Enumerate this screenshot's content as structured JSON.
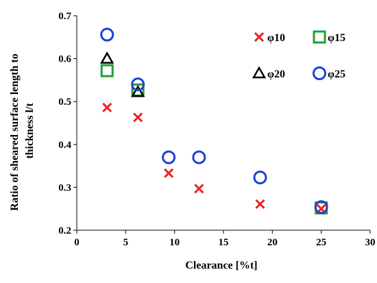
{
  "chart_data": {
    "type": "scatter",
    "title": "",
    "xlabel": "Clearance [%t]",
    "ylabel_lines": [
      "Ratio of sheared surface length to",
      "thickness l/t"
    ],
    "xlim": [
      0,
      30
    ],
    "ylim": [
      0.2,
      0.7
    ],
    "x_ticks": [
      0,
      5,
      10,
      15,
      20,
      25,
      30
    ],
    "y_ticks": [
      "0.2",
      "0.3",
      "0.4",
      "0.5",
      "0.6",
      "0.7"
    ],
    "grid": false,
    "legend_position": "top-right",
    "series": [
      {
        "name": "φ10",
        "marker": "x",
        "color": "#e8251f",
        "points": [
          [
            3.1,
            0.486
          ],
          [
            6.25,
            0.463
          ],
          [
            9.4,
            0.333
          ],
          [
            12.5,
            0.297
          ],
          [
            18.75,
            0.261
          ],
          [
            25,
            0.25
          ]
        ]
      },
      {
        "name": "φ15",
        "marker": "square",
        "color": "#21a032",
        "points": [
          [
            3.1,
            0.572
          ],
          [
            6.25,
            0.527
          ],
          [
            25,
            0.252
          ]
        ]
      },
      {
        "name": "φ20",
        "marker": "triangle",
        "color": "#000000",
        "points": [
          [
            3.1,
            0.6
          ],
          [
            6.25,
            0.522
          ]
        ]
      },
      {
        "name": "φ25",
        "marker": "circle",
        "color": "#1f3fd6",
        "points": [
          [
            3.1,
            0.656
          ],
          [
            6.25,
            0.54
          ],
          [
            9.4,
            0.37
          ],
          [
            12.5,
            0.37
          ],
          [
            18.75,
            0.323
          ],
          [
            25,
            0.254
          ]
        ]
      }
    ]
  }
}
